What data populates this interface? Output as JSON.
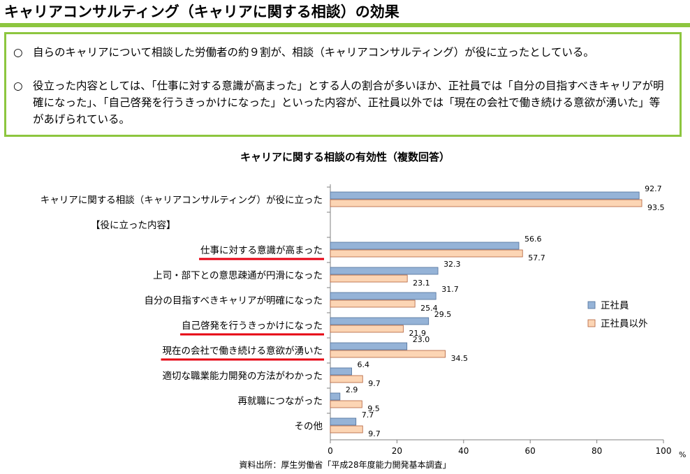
{
  "page": {
    "title": "キャリアコンサルティング（キャリアに関する相談）の効果"
  },
  "summary": {
    "bullets": [
      {
        "mark": "○",
        "text": "自らのキャリアについて相談した労働者の約９割が、相談（キャリアコンサルティング）が役に立ったとしている。"
      },
      {
        "mark": "○",
        "text": "役立った内容としては、「仕事に対する意識が高まった」とする人の割合が多いほか、正社員では「自分の目指すべきキャリアが明確になった」、「自己啓発を行うきっかけになった」といった内容が、正社員以外では「現在の会社で働き続ける意欲が湧いた」等があげられている。"
      }
    ]
  },
  "source_note": "資料出所：厚生労働省「平成28年度能力開発基本調査」",
  "colors": {
    "accent_green": "#8dc63f",
    "series_regular": "#95b3d7",
    "series_regular_border": "#4f6f9a",
    "series_nonregular": "#fcd5b4",
    "series_nonregular_border": "#b2603a",
    "underline_red": "#e60012"
  },
  "chart_data": {
    "type": "bar",
    "orientation": "horizontal",
    "title": "キャリアに関する相談の有効性（複数回答）",
    "xlabel": "%",
    "xlim": [
      0,
      100
    ],
    "xticks": [
      0,
      20,
      40,
      60,
      80,
      100
    ],
    "legend_position": "right",
    "categories": [
      {
        "label": "キャリアに関する相談（キャリアコンサルティング）が役に立った",
        "underlined": false
      },
      {
        "label": "【役に立った内容】",
        "underlined": false,
        "header": true
      },
      {
        "label": "仕事に対する意識が高まった",
        "underlined": true
      },
      {
        "label": "上司・部下との意思疎通が円滑になった",
        "underlined": false
      },
      {
        "label": "自分の目指すべきキャリアが明確になった",
        "underlined": false
      },
      {
        "label": "自己啓発を行うきっかけになった",
        "underlined": true
      },
      {
        "label": "現在の会社で働き続ける意欲が湧いた",
        "underlined": true
      },
      {
        "label": "適切な職業能力開発の方法がわかった",
        "underlined": false
      },
      {
        "label": "再就職につながった",
        "underlined": false
      },
      {
        "label": "その他",
        "underlined": false
      }
    ],
    "series": [
      {
        "name": "正社員",
        "values": [
          92.7,
          null,
          56.6,
          32.3,
          31.7,
          29.5,
          23.0,
          6.4,
          2.9,
          7.7
        ],
        "labels": [
          "92.7",
          "",
          "56.6",
          "32.3",
          "31.7",
          "29.5",
          "23.0",
          "6.4",
          "2.9",
          "7.7"
        ]
      },
      {
        "name": "正社員以外",
        "values": [
          93.5,
          null,
          57.7,
          23.1,
          25.4,
          21.9,
          34.5,
          9.7,
          9.5,
          9.7
        ],
        "labels": [
          "93.5",
          "",
          "57.7",
          "23.1",
          "25.4",
          "21.9",
          "34.5",
          "9.7",
          "9.5",
          "9.7"
        ]
      }
    ]
  }
}
